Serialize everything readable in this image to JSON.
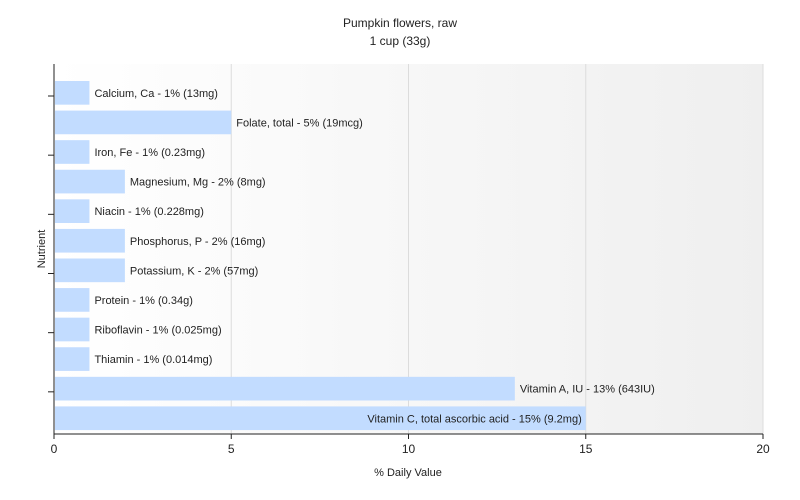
{
  "chart_data": {
    "type": "bar",
    "orientation": "horizontal",
    "title": "Pumpkin flowers, raw",
    "subtitle": "1 cup (33g)",
    "xlabel": "% Daily Value",
    "ylabel": "Nutrient",
    "xlim": [
      0,
      20
    ],
    "xticks": [
      0,
      5,
      10,
      15,
      20
    ],
    "grid": true,
    "bar_color": "#c2dcff",
    "categories": [
      "Calcium, Ca",
      "Folate, total",
      "Iron, Fe",
      "Magnesium, Mg",
      "Niacin",
      "Phosphorus, P",
      "Potassium, K",
      "Protein",
      "Riboflavin",
      "Thiamin",
      "Vitamin A, IU",
      "Vitamin C, total ascorbic acid"
    ],
    "values": [
      1,
      5,
      1,
      2,
      1,
      2,
      2,
      1,
      1,
      1,
      13,
      15
    ],
    "labels": [
      "Calcium, Ca - 1% (13mg)",
      "Folate, total - 5% (19mcg)",
      "Iron, Fe - 1% (0.23mg)",
      "Magnesium, Mg - 2% (8mg)",
      "Niacin - 1% (0.228mg)",
      "Phosphorus, P - 2% (16mg)",
      "Potassium, K - 2% (57mg)",
      "Protein - 1% (0.34g)",
      "Riboflavin - 1% (0.025mg)",
      "Thiamin - 1% (0.014mg)",
      "Vitamin A, IU - 13% (643IU)",
      "Vitamin C, total ascorbic acid - 15% (9.2mg)"
    ]
  }
}
